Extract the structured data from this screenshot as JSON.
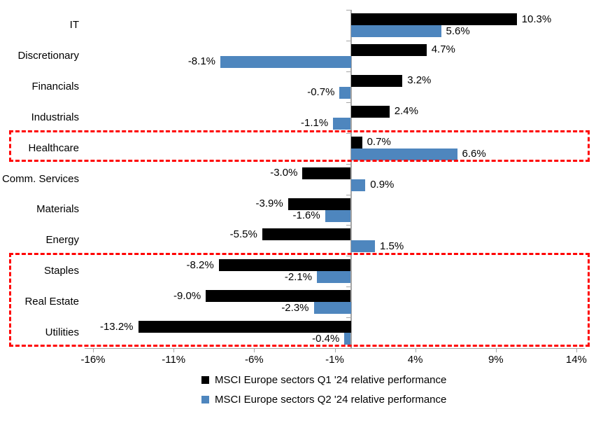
{
  "chart_data": {
    "type": "bar",
    "orientation": "horizontal",
    "categories": [
      "IT",
      "Discretionary",
      "Financials",
      "Industrials",
      "Healthcare",
      "Comm. Services",
      "Materials",
      "Energy",
      "Staples",
      "Real Estate",
      "Utilities"
    ],
    "series": [
      {
        "name": "MSCI Europe sectors Q1 '24 relative performance",
        "color": "#000000",
        "values": [
          10.3,
          4.7,
          3.2,
          2.4,
          0.7,
          -3.0,
          -3.9,
          -5.5,
          -8.2,
          -9.0,
          -13.2
        ],
        "labels": [
          "10.3%",
          "4.7%",
          "3.2%",
          "2.4%",
          "0.7%",
          "-3.0%",
          "-3.9%",
          "-5.5%",
          "-8.2%",
          "-9.0%",
          "-13.2%"
        ]
      },
      {
        "name": "MSCI Europe sectors Q2 '24 relative performance",
        "color": "#4E86BE",
        "values": [
          5.6,
          -8.1,
          -0.7,
          -1.1,
          6.6,
          0.9,
          -1.6,
          1.5,
          -2.1,
          -2.3,
          -0.4
        ],
        "labels": [
          "5.6%",
          "-8.1%",
          "-0.7%",
          "-1.1%",
          "6.6%",
          "0.9%",
          "-1.6%",
          "1.5%",
          "-2.1%",
          "-2.3%",
          "-0.4%"
        ]
      }
    ],
    "x_ticks": [
      -16,
      -11,
      -6,
      -1,
      4,
      9,
      14
    ],
    "x_tick_labels": [
      "-16%",
      "-11%",
      "-6%",
      "-1%",
      "4%",
      "9%",
      "14%"
    ],
    "xlim": [
      -16.5,
      14.5
    ],
    "grid": false,
    "legend_position": "bottom",
    "axis_color": "#A6A6A6",
    "highlight_color": "#FF0000",
    "highlights": [
      {
        "from": "Healthcare",
        "to": "Healthcare"
      },
      {
        "from": "Staples",
        "to": "Utilities"
      }
    ]
  }
}
